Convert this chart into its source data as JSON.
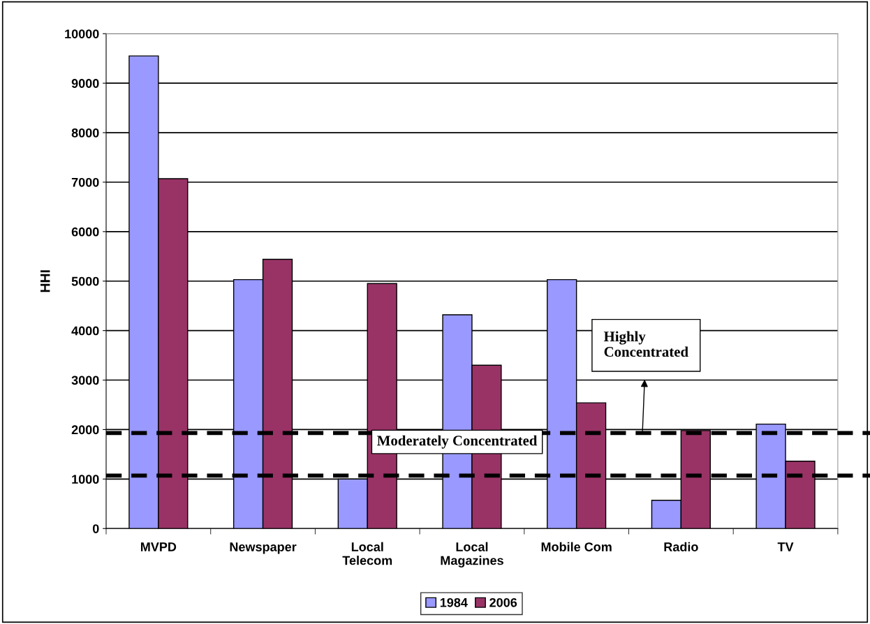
{
  "chart_data": {
    "type": "bar",
    "ylabel": "HHI",
    "categories": [
      "MVPD",
      "Newspaper",
      "Local\nTelecom",
      "Local\nMagazines",
      "Mobile Com",
      "Radio",
      "TV"
    ],
    "series": [
      {
        "name": "1984",
        "color": "#9999ff",
        "values": [
          9550,
          5030,
          1000,
          4320,
          5030,
          570,
          2110
        ]
      },
      {
        "name": "2006",
        "color": "#993366",
        "values": [
          7070,
          5440,
          4950,
          3300,
          2540,
          1980,
          1360
        ]
      }
    ],
    "ylim": [
      0,
      10000
    ],
    "yticks": [
      0,
      1000,
      2000,
      3000,
      4000,
      5000,
      6000,
      7000,
      8000,
      9000,
      10000
    ],
    "grid": "y",
    "legend": "bottom",
    "ref_lines": [
      {
        "axis": "y",
        "value": 1930,
        "color": "#000000",
        "line_style": "dashed"
      },
      {
        "axis": "y",
        "value": 1070,
        "color": "#000000",
        "line_style": "dashed"
      }
    ],
    "annotations": [
      "Moderately Concentrated",
      "Highly\nConcentrated"
    ]
  }
}
